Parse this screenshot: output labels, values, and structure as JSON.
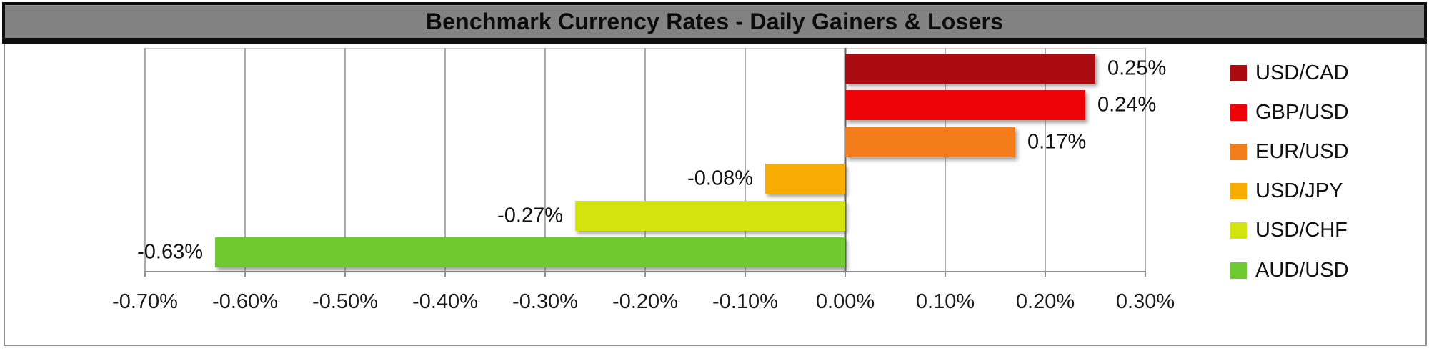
{
  "title": "Benchmark Currency Rates - Daily Gainers & Losers",
  "chart_data": {
    "type": "bar",
    "orientation": "horizontal",
    "title": "Benchmark Currency Rates - Daily Gainers & Losers",
    "categories": [
      "USD/CAD",
      "GBP/USD",
      "EUR/USD",
      "USD/JPY",
      "USD/CHF",
      "AUD/USD"
    ],
    "values": [
      0.25,
      0.24,
      0.17,
      -0.08,
      -0.27,
      -0.63
    ],
    "value_labels": [
      "0.25%",
      "0.24%",
      "0.17%",
      "-0.08%",
      "-0.27%",
      "-0.63%"
    ],
    "series_colors": [
      "#AA0B10",
      "#EE0309",
      "#F47D1B",
      "#F9AC04",
      "#D3E30D",
      "#6FC930"
    ],
    "xlim": [
      -0.7,
      0.3
    ],
    "x_ticks": [
      -0.7,
      -0.6,
      -0.5,
      -0.4,
      -0.3,
      -0.2,
      -0.1,
      0,
      0.1,
      0.2,
      0.3
    ],
    "x_tick_labels": [
      "-0.70%",
      "-0.60%",
      "-0.50%",
      "-0.40%",
      "-0.30%",
      "-0.20%",
      "-0.10%",
      "0.00%",
      "0.10%",
      "0.20%",
      "0.30%"
    ],
    "grid": "vertical gridlines on",
    "legend_position": "right",
    "value_label_position": "outside end"
  },
  "colors": {
    "background": "#FFFFFF",
    "title_bg": "#828282",
    "title_text": "#0B0B0B",
    "title_border": "#0D0D0D",
    "frame_border": "#8F8F8F",
    "grid_line": "#ACACAC",
    "zero_line": "#666666",
    "axis_line": "#8F8F8F",
    "tick_text": "#1A1A1A",
    "label_text": "#111111"
  }
}
